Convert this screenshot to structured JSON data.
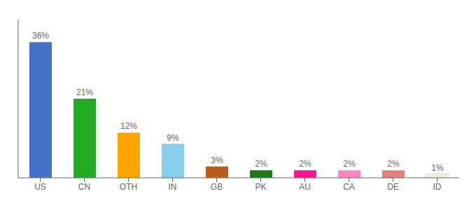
{
  "chart_data": {
    "type": "bar",
    "categories": [
      "US",
      "CN",
      "OTH",
      "IN",
      "GB",
      "PK",
      "AU",
      "CA",
      "DE",
      "ID"
    ],
    "values": [
      36,
      21,
      12,
      9,
      3,
      2,
      2,
      2,
      2,
      1
    ],
    "value_labels": [
      "36%",
      "21%",
      "12%",
      "9%",
      "3%",
      "2%",
      "2%",
      "2%",
      "2%",
      "1%"
    ],
    "colors": [
      "#4472C4",
      "#22AA22",
      "#FFA500",
      "#87CEEB",
      "#B85C1A",
      "#1E7A1E",
      "#FF1493",
      "#FF85C0",
      "#E08080",
      "#F5F0DC"
    ],
    "ylim": [
      0,
      42
    ],
    "data_labels": true,
    "tick_labels": "x",
    "grid": false
  }
}
